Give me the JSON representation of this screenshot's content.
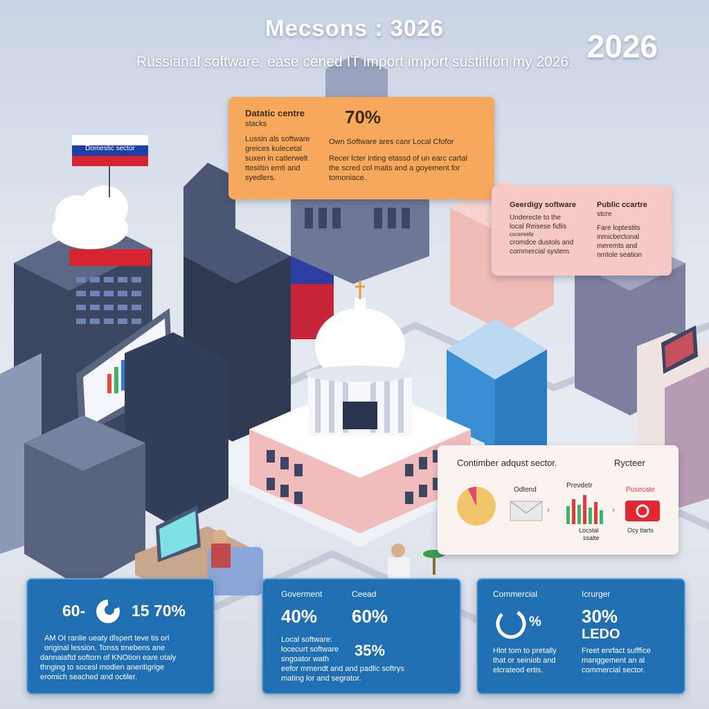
{
  "header": {
    "title": "Mecsons : 3026",
    "year": "2026",
    "subtitle": "Russianal software, ease cened IT import import sustiition my 2026."
  },
  "flag_label": "Domestic sector",
  "orange_card": {
    "heading": "Datatic centre",
    "heading2": "stacks",
    "percent": "70%",
    "left_lines": [
      "Lussin als software",
      "greices kulecetal",
      "suxen in catlerwelt",
      "ttesiitin emti and",
      "syedlers."
    ],
    "right_line1": "Own Software ares canr Local Cfofor",
    "right_lines": [
      "Recer lcter inting etassd of un earc cartal",
      "the scred col maits and a goyement for",
      "tomoniace."
    ]
  },
  "pink_card": {
    "left_heading": "Geerdigy software",
    "left_lines": [
      "Underecte to the",
      "local Reisese fidlis",
      "cxcereefe",
      "cromdce dustols and",
      "commercial system."
    ],
    "right_heading": "Public ccartre",
    "right_heading2": "stcre",
    "right_lines": [
      "Fare loptestits",
      "inmicbectonal",
      "meremts and",
      "nmtole seation"
    ]
  },
  "consumer_card": {
    "heading": "Contimber adqust sector.",
    "right_heading": "Rycteer",
    "label_mail": "Odtend",
    "label_chart_top": "Prevdetr",
    "label_chart_bottom1": "Locstal",
    "label_chart_bottom2": "ssalte",
    "label_device_top": "Pusecate",
    "label_device_bottom": "Ocy tlarts"
  },
  "stat_box_1": {
    "stat_left": "60-",
    "stat_right": "15 70%",
    "lines": [
      "AM OI ranlie ueaty dlspert teve tis orl",
      "original lession. Tonss tmebens ane",
      "dannaiaftd softorn of KNOtion eare otaly",
      "thnging to socesl modien aneritigrige",
      "eromich seached and octiler."
    ]
  },
  "stat_box_2": {
    "label_left": "Goverment",
    "label_right": "Ceead",
    "pct_a": "40%",
    "pct_b": "60%",
    "pct_c": "35%",
    "lines": [
      "Local software:",
      "locecurt software",
      "sngoator wath",
      "eefor mmendt and and padlic softrys",
      "mating lor and segrator."
    ]
  },
  "stat_box_3": {
    "label_left": "Commercial",
    "label_right": "Icrurger",
    "ring_pct": "%",
    "pct": "30%",
    "code": "LEDO",
    "left_lines": [
      "Hlot tom to pretally",
      "that or seiniob and",
      "elcrateod ertis."
    ],
    "right_lines": [
      "Freet enrfact sufffice",
      "manggement an al",
      "commercial sector."
    ]
  },
  "colors": {
    "orange": "#f6a95c",
    "pink": "#f7c9c6",
    "blue": "#1f6fb2",
    "flag_red": "#d5232f",
    "flag_blue": "#1b3fa6"
  }
}
